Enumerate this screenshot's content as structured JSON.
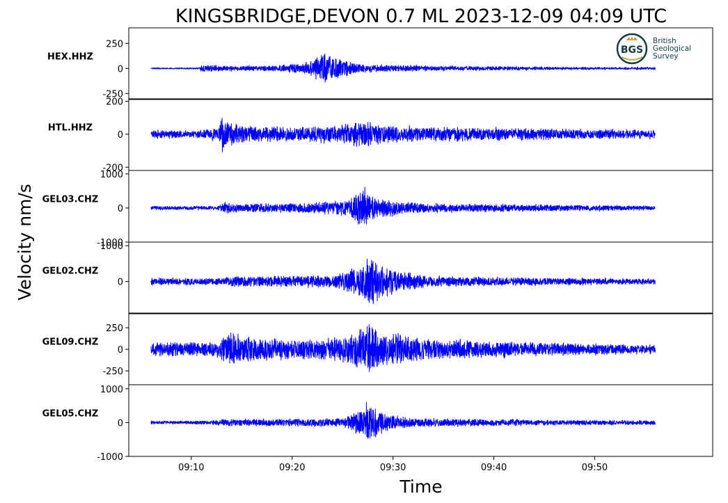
{
  "chart_data": {
    "type": "line",
    "title": "KINGSBRIDGE,DEVON 0.7 ML   2023-12-09 04:09 UTC",
    "xlabel": "Time",
    "ylabel": "Velocity nm/s",
    "line_color": "#0000ff",
    "grid": false,
    "x_ticks": [
      "09:10",
      "09:20",
      "09:30",
      "09:40",
      "09:50"
    ],
    "x_tick_minutes": [
      10,
      20,
      30,
      40,
      50
    ],
    "x_range_minutes": [
      3.8,
      61.7
    ],
    "trace_range_minutes": [
      6.0,
      56.0
    ],
    "panels": [
      {
        "station": "HEX.HHZ",
        "ylim": [
          -310,
          405
        ],
        "yticks": [
          250,
          0,
          -250
        ],
        "ytick_labels": [
          "250",
          "0",
          "-250"
        ],
        "noise": 8,
        "envelope": [
          [
            6.0,
            1
          ],
          [
            10.8,
            1
          ],
          [
            11.0,
            45
          ],
          [
            12.5,
            30
          ],
          [
            15.0,
            25
          ],
          [
            18.0,
            30
          ],
          [
            21.0,
            60
          ],
          [
            22.5,
            130
          ],
          [
            23.2,
            195
          ],
          [
            24.5,
            110
          ],
          [
            27.0,
            45
          ],
          [
            35.0,
            25
          ],
          [
            45.0,
            15
          ],
          [
            56.0,
            10
          ]
        ]
      },
      {
        "station": "HTL.HHZ",
        "ylim": [
          -220,
          215
        ],
        "yticks": [
          200,
          0,
          -200
        ],
        "ytick_labels": [
          "200",
          "0",
          "-200"
        ],
        "noise": 8,
        "envelope": [
          [
            6.0,
            25
          ],
          [
            10.5,
            25
          ],
          [
            12.7,
            45
          ],
          [
            13.0,
            130
          ],
          [
            14.5,
            60
          ],
          [
            20.0,
            50
          ],
          [
            24.5,
            65
          ],
          [
            27.0,
            95
          ],
          [
            29.0,
            60
          ],
          [
            38.0,
            45
          ],
          [
            50.0,
            32
          ],
          [
            56.0,
            28
          ]
        ]
      },
      {
        "station": "GEL03.CHZ",
        "ylim": [
          -1000,
          1100
        ],
        "yticks": [
          1000,
          0,
          -1000
        ],
        "ytick_labels": [
          "1000",
          "0",
          "-1000"
        ],
        "noise": 15,
        "envelope": [
          [
            6.0,
            60
          ],
          [
            12.5,
            60
          ],
          [
            13.5,
            200
          ],
          [
            15.0,
            130
          ],
          [
            22.0,
            180
          ],
          [
            25.5,
            260
          ],
          [
            27.2,
            700
          ],
          [
            28.5,
            330
          ],
          [
            33.0,
            160
          ],
          [
            45.0,
            110
          ],
          [
            56.0,
            70
          ]
        ]
      },
      {
        "station": "GEL02.CHZ",
        "ylim": [
          -900,
          1100
        ],
        "yticks": [
          1000,
          0
        ],
        "ytick_labels": [
          "1000",
          "0"
        ],
        "noise": 15,
        "envelope": [
          [
            6.0,
            110
          ],
          [
            13.0,
            110
          ],
          [
            13.5,
            170
          ],
          [
            20.0,
            190
          ],
          [
            24.0,
            190
          ],
          [
            26.0,
            400
          ],
          [
            27.8,
            800
          ],
          [
            29.5,
            420
          ],
          [
            31.5,
            300
          ],
          [
            34.0,
            170
          ],
          [
            45.0,
            120
          ],
          [
            56.0,
            90
          ]
        ]
      },
      {
        "station": "GEL09.CHZ",
        "ylim": [
          -410,
          420
        ],
        "yticks": [
          250,
          0,
          -250
        ],
        "ytick_labels": [
          "250",
          "0",
          "-250"
        ],
        "noise": 10,
        "envelope": [
          [
            6.0,
            90
          ],
          [
            12.5,
            100
          ],
          [
            13.8,
            250
          ],
          [
            15.5,
            170
          ],
          [
            20.0,
            140
          ],
          [
            24.0,
            150
          ],
          [
            26.0,
            230
          ],
          [
            27.5,
            340
          ],
          [
            29.5,
            230
          ],
          [
            33.0,
            140
          ],
          [
            45.0,
            90
          ],
          [
            56.0,
            55
          ]
        ]
      },
      {
        "station": "GEL05.CHZ",
        "ylim": [
          -1000,
          1120
        ],
        "yticks": [
          1000,
          0,
          -1000
        ],
        "ytick_labels": [
          "1000",
          "0",
          "-1000"
        ],
        "noise": 15,
        "envelope": [
          [
            6.0,
            55
          ],
          [
            12.0,
            60
          ],
          [
            13.0,
            110
          ],
          [
            20.0,
            120
          ],
          [
            25.0,
            150
          ],
          [
            26.5,
            380
          ],
          [
            27.5,
            780
          ],
          [
            29.0,
            330
          ],
          [
            32.0,
            150
          ],
          [
            45.0,
            90
          ],
          [
            56.0,
            70
          ]
        ]
      }
    ]
  },
  "logo": {
    "letters": "BGS",
    "lines": [
      "British",
      "Geological",
      "Survey"
    ],
    "ring_color": "#0f3d45",
    "crest_color": "#c9a33b"
  }
}
